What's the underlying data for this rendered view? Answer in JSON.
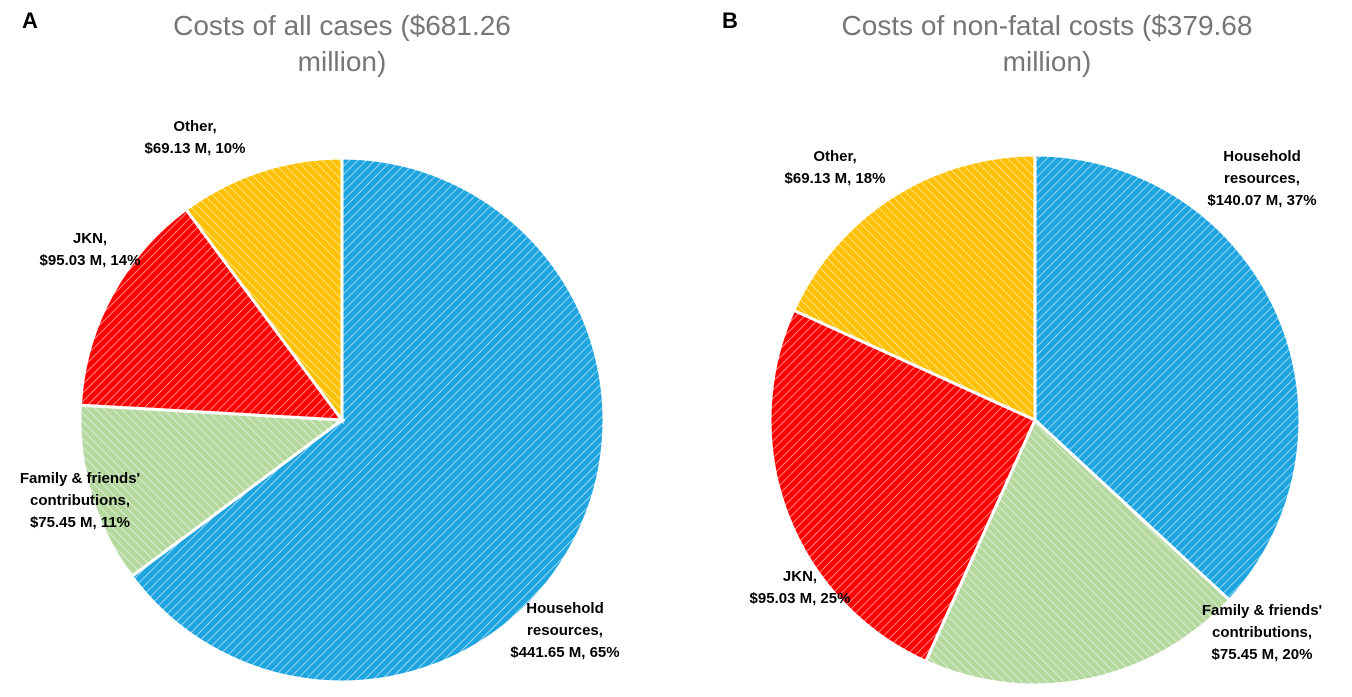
{
  "chart_data": [
    {
      "type": "pie",
      "panel": "A",
      "title": "Costs of all cases ($681.26 million)",
      "categories": [
        "Household resources,",
        "Family & friends' contributions,",
        "JKN,",
        "Other,"
      ],
      "values": [
        441.65,
        75.45,
        95.03,
        69.13
      ],
      "value_labels": [
        "$441.65 M, 65%",
        "$75.45 M, 11%",
        "$95.03 M, 14%",
        "$69.13 M, 10%"
      ],
      "colors": [
        "#1ea5e0",
        "#b5d89e",
        "#ff0000",
        "#ffc000"
      ]
    },
    {
      "type": "pie",
      "panel": "B",
      "title": "Costs of non-fatal costs ($379.68 million)",
      "categories": [
        "Household resources,",
        "Family & friends' contributions,",
        "JKN,",
        "Other,"
      ],
      "values": [
        140.07,
        75.45,
        95.03,
        69.13
      ],
      "value_labels": [
        "$140.07 M, 37%",
        "$75.45 M, 20%",
        "$95.03 M, 25%",
        "$69.13 M, 18%"
      ],
      "colors": [
        "#1ea5e0",
        "#b5d89e",
        "#ff0000",
        "#ffc000"
      ]
    }
  ]
}
